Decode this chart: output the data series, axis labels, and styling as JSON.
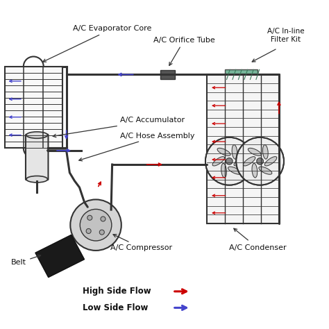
{
  "bg_color": "#ffffff",
  "line_color": "#333333",
  "high_flow_color": "#cc0000",
  "low_flow_color": "#4444cc",
  "filter_color": "#5faa88",
  "labels": {
    "evaporator": "A/C Evaporator Core",
    "orifice": "A/C Orifice Tube",
    "filter": "A/C In-line\nFilter Kit",
    "accumulator": "A/C Accumulator",
    "hose": "A/C Hose Assembly",
    "compressor": "A/C Compressor",
    "condenser": "A/C Condenser",
    "belt": "Belt",
    "high_flow": "High Side Flow",
    "low_flow": "Low Side Flow"
  }
}
